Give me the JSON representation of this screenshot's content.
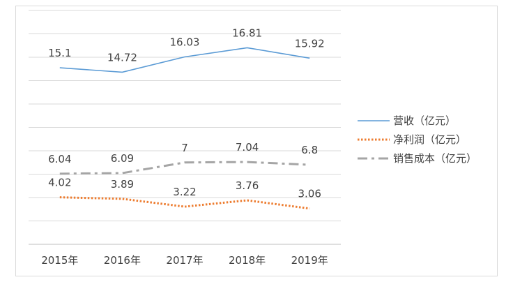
{
  "chart_data": {
    "type": "line",
    "categories": [
      "2015年",
      "2016年",
      "2017年",
      "2018年",
      "2019年"
    ],
    "ylim": [
      0,
      20
    ],
    "grid": true,
    "legend_position": "right",
    "series": [
      {
        "name": "营收（亿元）",
        "values": [
          15.1,
          14.72,
          16.03,
          16.81,
          15.92
        ],
        "labels": [
          "15.1",
          "14.72",
          "16.03",
          "16.81",
          "15.92"
        ],
        "color": "#5b9bd5",
        "style": "solid"
      },
      {
        "name": "净利润（亿元）",
        "values": [
          4.02,
          3.89,
          3.22,
          3.76,
          3.06
        ],
        "labels": [
          "4.02",
          "3.89",
          "3.22",
          "3.76",
          "3.06"
        ],
        "color": "#ed7d31",
        "style": "dotted"
      },
      {
        "name": "销售成本（亿元）",
        "values": [
          6.04,
          6.09,
          7,
          7.04,
          6.8
        ],
        "labels": [
          "6.04",
          "6.09",
          "7",
          "7.04",
          "6.8"
        ],
        "color": "#a5a5a5",
        "style": "dashdot"
      }
    ]
  }
}
